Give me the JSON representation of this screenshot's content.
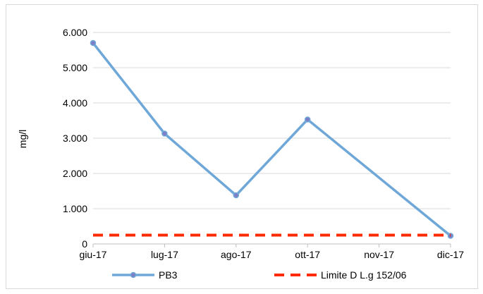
{
  "chart_data": {
    "type": "line",
    "categories": [
      "giu-17",
      "lug-17",
      "ago-17",
      "ott-17",
      "nov-17",
      "dic-17"
    ],
    "series": [
      {
        "name": "PB3",
        "values": [
          5700,
          3130,
          1380,
          3530,
          null,
          230
        ],
        "color": "#6fa8d8",
        "style": "solid",
        "markers": true
      },
      {
        "name": "Limite D L.g 152/06",
        "values": [
          250,
          250,
          250,
          250,
          250,
          250
        ],
        "color": "#ff2a00",
        "style": "dashed",
        "markers": false
      }
    ],
    "xlabel": "",
    "ylabel": "mg/l",
    "ylim": [
      0,
      6000
    ],
    "yticks": [
      0,
      1000,
      2000,
      3000,
      4000,
      5000,
      6000
    ],
    "ytick_labels": [
      "0",
      "1.000",
      "2.000",
      "3.000",
      "4.000",
      "5.000",
      "6.000"
    ],
    "grid": true,
    "legend_position": "bottom"
  }
}
